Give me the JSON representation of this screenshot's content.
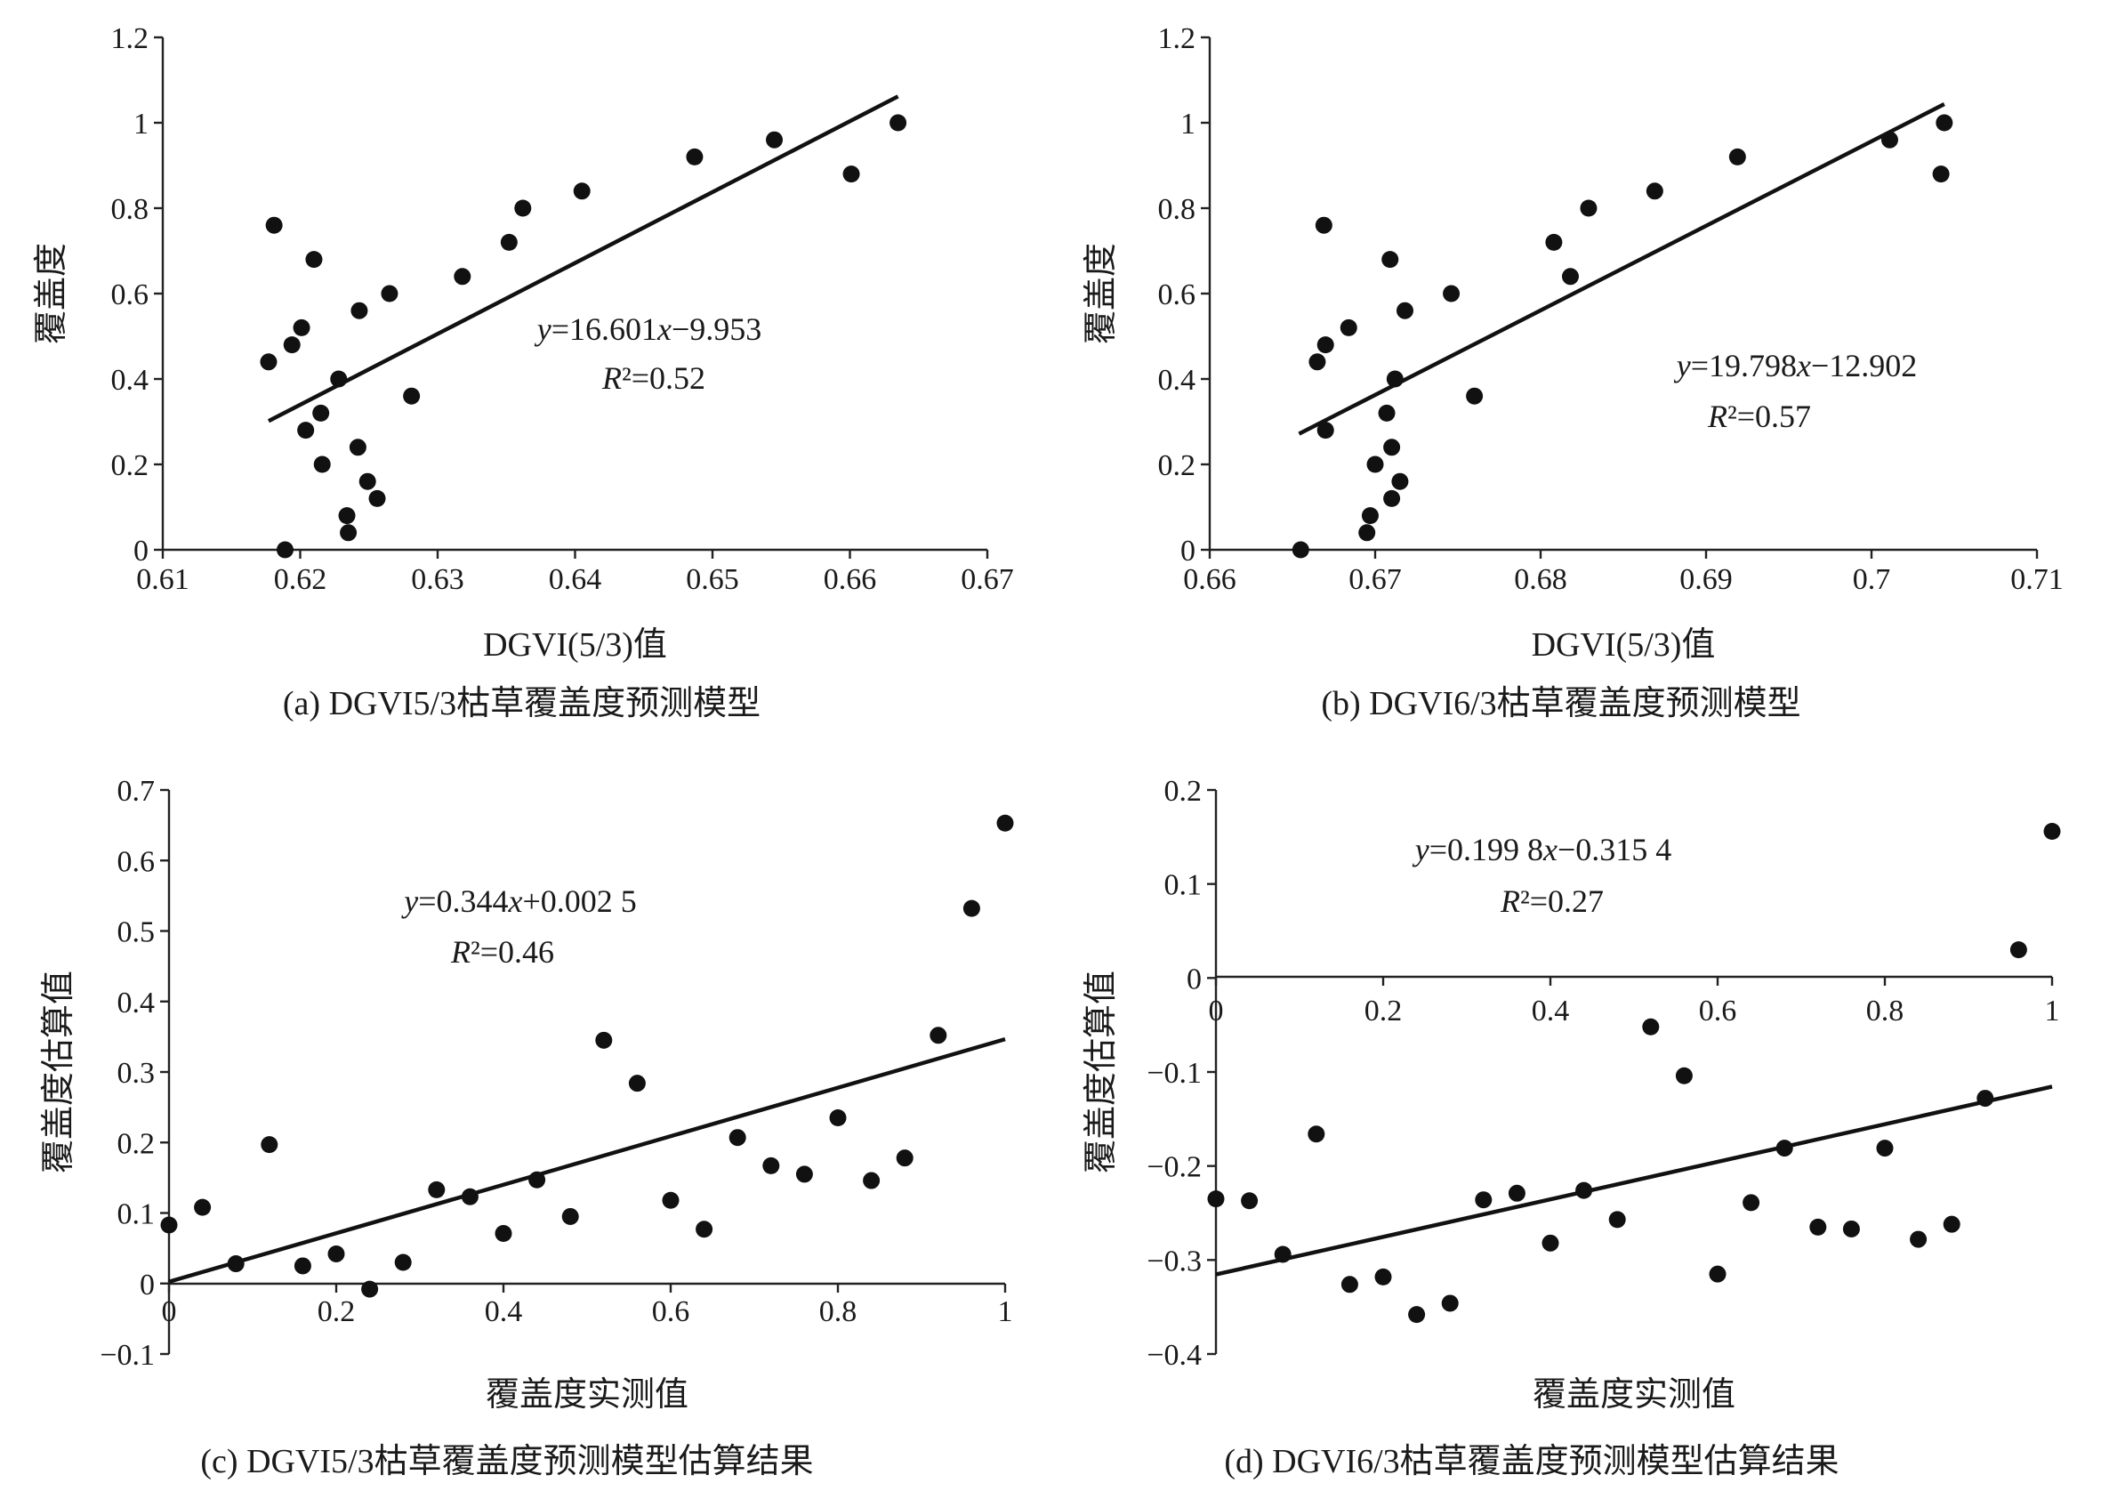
{
  "chart_data": [
    {
      "id": "a",
      "type": "scatter",
      "caption": "(a) DGVI5/3枯草覆盖度预测模型",
      "xlabel": "DGVI(5/3)值",
      "ylabel": "覆盖度",
      "xlim": [
        0.61,
        0.67
      ],
      "ylim": [
        0,
        1.2
      ],
      "xticks": [
        "0.61",
        "0.62",
        "0.63",
        "0.64",
        "0.65",
        "0.66",
        "0.67"
      ],
      "yticks": [
        "0",
        "0.2",
        "0.4",
        "0.6",
        "0.8",
        "1",
        "1.2"
      ],
      "grid": false,
      "equation": "y=16.601x−9.953",
      "r2": "R²=0.52",
      "fit": {
        "slope": 16.601,
        "intercept": -9.953,
        "x_range": [
          0.6177,
          0.6635
        ]
      },
      "points": [
        [
          0.6177,
          0.44
        ],
        [
          0.6181,
          0.76
        ],
        [
          0.6189,
          0.0
        ],
        [
          0.6194,
          0.48
        ],
        [
          0.6201,
          0.52
        ],
        [
          0.6204,
          0.28
        ],
        [
          0.621,
          0.68
        ],
        [
          0.6215,
          0.32
        ],
        [
          0.6216,
          0.2
        ],
        [
          0.6228,
          0.4
        ],
        [
          0.6234,
          0.08
        ],
        [
          0.6235,
          0.04
        ],
        [
          0.6242,
          0.24
        ],
        [
          0.6243,
          0.56
        ],
        [
          0.6249,
          0.16
        ],
        [
          0.6256,
          0.12
        ],
        [
          0.6265,
          0.6
        ],
        [
          0.6281,
          0.36
        ],
        [
          0.6318,
          0.64
        ],
        [
          0.6352,
          0.72
        ],
        [
          0.6362,
          0.8
        ],
        [
          0.6405,
          0.84
        ],
        [
          0.6487,
          0.92
        ],
        [
          0.6545,
          0.96
        ],
        [
          0.6601,
          0.88
        ],
        [
          0.6635,
          1.0
        ]
      ]
    },
    {
      "id": "b",
      "type": "scatter",
      "caption": "(b) DGVI6/3枯草覆盖度预测模型",
      "xlabel": "DGVI(5/3)值",
      "ylabel": "覆盖度",
      "xlim": [
        0.66,
        0.71
      ],
      "ylim": [
        0,
        1.2
      ],
      "xticks": [
        "0.66",
        "0.67",
        "0.68",
        "0.69",
        "0.7",
        "0.71"
      ],
      "yticks": [
        "0",
        "0.2",
        "0.4",
        "0.6",
        "0.8",
        "1",
        "1.2"
      ],
      "grid": false,
      "equation": "y=19.798x−12.902",
      "r2": "R²=0.57",
      "fit": {
        "slope": 19.798,
        "intercept": -12.902,
        "x_range": [
          0.6654,
          0.7044
        ]
      },
      "points": [
        [
          0.6655,
          0.0
        ],
        [
          0.6665,
          0.44
        ],
        [
          0.6669,
          0.76
        ],
        [
          0.667,
          0.28
        ],
        [
          0.667,
          0.48
        ],
        [
          0.6684,
          0.52
        ],
        [
          0.6695,
          0.04
        ],
        [
          0.6697,
          0.08
        ],
        [
          0.67,
          0.2
        ],
        [
          0.6707,
          0.32
        ],
        [
          0.6709,
          0.68
        ],
        [
          0.671,
          0.24
        ],
        [
          0.671,
          0.12
        ],
        [
          0.6712,
          0.4
        ],
        [
          0.6715,
          0.16
        ],
        [
          0.6718,
          0.56
        ],
        [
          0.6746,
          0.6
        ],
        [
          0.676,
          0.36
        ],
        [
          0.6808,
          0.72
        ],
        [
          0.6818,
          0.64
        ],
        [
          0.6829,
          0.8
        ],
        [
          0.6869,
          0.84
        ],
        [
          0.6919,
          0.92
        ],
        [
          0.7011,
          0.96
        ],
        [
          0.7044,
          1.0
        ],
        [
          0.7042,
          0.88
        ]
      ]
    },
    {
      "id": "c",
      "type": "scatter",
      "caption": "(c) DGVI5/3枯草覆盖度预测模型估算结果",
      "xlabel": "覆盖度实测值",
      "ylabel": "覆盖度估算值",
      "xlim": [
        0,
        1
      ],
      "ylim": [
        -0.1,
        0.7
      ],
      "xticks": [
        "0",
        "0.2",
        "0.4",
        "0.6",
        "0.8",
        "1"
      ],
      "yticks": [
        "−0.1",
        "0",
        "0.1",
        "0.2",
        "0.3",
        "0.4",
        "0.5",
        "0.6",
        "0.7"
      ],
      "grid": false,
      "equation": "y=0.344x+0.002 5",
      "r2": "R²=0.46",
      "fit": {
        "slope": 0.344,
        "intercept": 0.0025,
        "x_range": [
          0,
          1
        ]
      },
      "points": [
        [
          0.0,
          0.083
        ],
        [
          0.04,
          0.108
        ],
        [
          0.08,
          0.028
        ],
        [
          0.12,
          0.197
        ],
        [
          0.16,
          0.025
        ],
        [
          0.2,
          0.042
        ],
        [
          0.24,
          -0.008
        ],
        [
          0.28,
          0.03
        ],
        [
          0.32,
          0.133
        ],
        [
          0.36,
          0.123
        ],
        [
          0.4,
          0.071
        ],
        [
          0.44,
          0.147
        ],
        [
          0.48,
          0.095
        ],
        [
          0.52,
          0.345
        ],
        [
          0.56,
          0.284
        ],
        [
          0.6,
          0.118
        ],
        [
          0.64,
          0.077
        ],
        [
          0.68,
          0.207
        ],
        [
          0.72,
          0.167
        ],
        [
          0.76,
          0.155
        ],
        [
          0.8,
          0.235
        ],
        [
          0.84,
          0.146
        ],
        [
          0.88,
          0.178
        ],
        [
          0.92,
          0.352
        ],
        [
          0.96,
          0.532
        ],
        [
          1.0,
          0.653
        ]
      ]
    },
    {
      "id": "d",
      "type": "scatter",
      "caption": "(d) DGVI6/3枯草覆盖度预测模型估算结果",
      "xlabel": "覆盖度实测值",
      "ylabel": "覆盖度估算值",
      "xlim": [
        0,
        1
      ],
      "ylim": [
        -0.4,
        0.2
      ],
      "xticks": [
        "0",
        "0.2",
        "0.4",
        "0.6",
        "0.8",
        "1"
      ],
      "yticks": [
        "−0.4",
        "−0.3",
        "−0.2",
        "−0.1",
        "0",
        "0.1",
        "0.2"
      ],
      "grid": false,
      "equation": "y=0.199 8x−0.315 4",
      "r2": "R²=0.27",
      "fit": {
        "slope": 0.1998,
        "intercept": -0.3154,
        "x_range": [
          0,
          1
        ]
      },
      "points": [
        [
          0.0,
          -0.235
        ],
        [
          0.04,
          -0.237
        ],
        [
          0.08,
          -0.294
        ],
        [
          0.12,
          -0.166
        ],
        [
          0.16,
          -0.326
        ],
        [
          0.2,
          -0.318
        ],
        [
          0.24,
          -0.358
        ],
        [
          0.28,
          -0.346
        ],
        [
          0.32,
          -0.236
        ],
        [
          0.36,
          -0.229
        ],
        [
          0.4,
          -0.282
        ],
        [
          0.44,
          -0.226
        ],
        [
          0.48,
          -0.257
        ],
        [
          0.52,
          -0.052
        ],
        [
          0.56,
          -0.104
        ],
        [
          0.6,
          -0.315
        ],
        [
          0.64,
          -0.239
        ],
        [
          0.68,
          -0.181
        ],
        [
          0.72,
          -0.265
        ],
        [
          0.76,
          -0.267
        ],
        [
          0.8,
          -0.181
        ],
        [
          0.84,
          -0.278
        ],
        [
          0.88,
          -0.262
        ],
        [
          0.92,
          -0.128
        ],
        [
          0.96,
          0.03
        ],
        [
          1.0,
          0.156
        ]
      ]
    }
  ]
}
